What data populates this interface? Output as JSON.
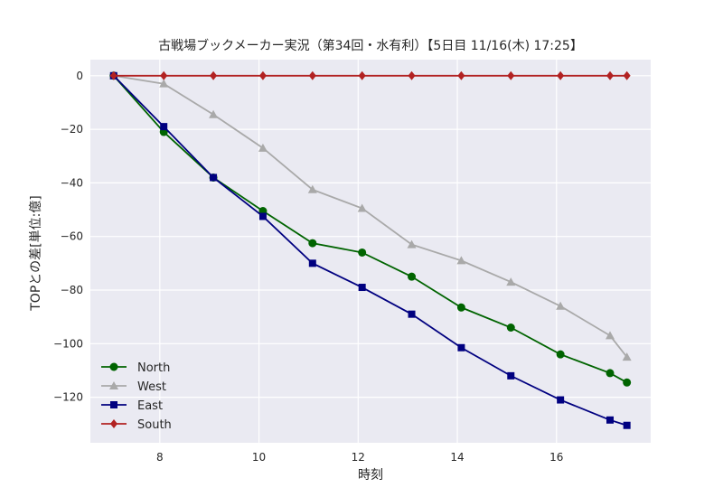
{
  "chart_data": {
    "type": "line",
    "title": "古戦場ブックメーカー実況（第34回・水有利）【5日目 11/16(木) 17:25】",
    "xlabel": "時刻",
    "ylabel": "TOPとの差[単位:億]",
    "xlim": [
      6.6,
      17.9
    ],
    "ylim": [
      -137,
      6
    ],
    "xticks": [
      8,
      10,
      12,
      14,
      16
    ],
    "yticks": [
      0,
      -20,
      -40,
      -60,
      -80,
      -100,
      -120
    ],
    "grid": true,
    "legend_position": "lower-left",
    "x": [
      7.07,
      8.08,
      9.08,
      10.08,
      11.08,
      12.08,
      13.08,
      14.08,
      15.08,
      16.08,
      17.08,
      17.42
    ],
    "series": [
      {
        "name": "North",
        "color": "#006400",
        "marker": "circle",
        "values": [
          0,
          -21,
          -38,
          -50.5,
          -62.5,
          -66,
          -75,
          -86.5,
          -94,
          -104,
          -111,
          -114.5
        ]
      },
      {
        "name": "West",
        "color": "#a9a9a9",
        "marker": "triangle",
        "values": [
          0,
          -3,
          -14.5,
          -27,
          -42.5,
          -49.5,
          -63,
          -69,
          -77,
          -86,
          -97,
          -105
        ]
      },
      {
        "name": "East",
        "color": "#000080",
        "marker": "square",
        "values": [
          0,
          -19,
          -38,
          -52.5,
          -70,
          -79,
          -89,
          -101.5,
          -112,
          -121,
          -128.5,
          -130.5
        ]
      },
      {
        "name": "South",
        "color": "#b22222",
        "marker": "diamond",
        "values": [
          0,
          0,
          0,
          0,
          0,
          0,
          0,
          0,
          0,
          0,
          0,
          0
        ]
      }
    ],
    "style": {
      "background": "#eaeaf2",
      "gridline": "#ffffff",
      "text": "#262626"
    }
  }
}
